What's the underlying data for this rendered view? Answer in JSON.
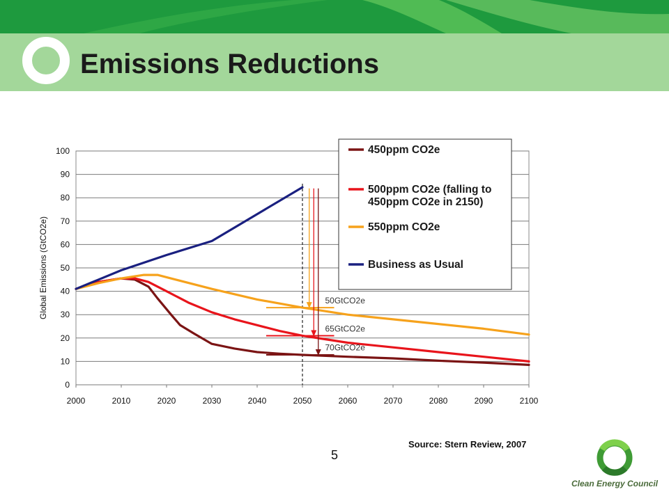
{
  "slide": {
    "title": "Emissions Reductions",
    "source": "Source: Stern Review, 2007",
    "page_number": "5",
    "logo_text": "Clean Energy Council"
  },
  "colors": {
    "header_dark": "#1e9a3e",
    "header_light": "#a3d79a",
    "series_450": "#7b1414",
    "series_500": "#e8141b",
    "series_550": "#f6a21c",
    "series_bau": "#1a2080"
  },
  "chart_data": {
    "type": "line",
    "title": "",
    "xlabel": "",
    "ylabel": "Global Emissions (GtCO2e)",
    "xlim": [
      2000,
      2100
    ],
    "ylim": [
      0,
      100
    ],
    "x_ticks": [
      2000,
      2010,
      2020,
      2030,
      2040,
      2050,
      2060,
      2070,
      2080,
      2090,
      2100
    ],
    "y_ticks": [
      0,
      10,
      20,
      30,
      40,
      50,
      60,
      70,
      80,
      90,
      100
    ],
    "grid": "horizontal",
    "legend_position": "top-right",
    "series": [
      {
        "name": "450ppm CO2e",
        "color": "#7b1414",
        "points": [
          [
            2000,
            41
          ],
          [
            2005,
            44
          ],
          [
            2010,
            45.5
          ],
          [
            2013,
            45
          ],
          [
            2016,
            42
          ],
          [
            2018,
            37
          ],
          [
            2021,
            30
          ],
          [
            2023,
            25.5
          ],
          [
            2026,
            22
          ],
          [
            2030,
            17.5
          ],
          [
            2035,
            15.5
          ],
          [
            2040,
            14
          ],
          [
            2045,
            13.3
          ],
          [
            2050,
            12.8
          ],
          [
            2060,
            12
          ],
          [
            2070,
            11.3
          ],
          [
            2080,
            10.3
          ],
          [
            2090,
            9.5
          ],
          [
            2100,
            8.5
          ]
        ]
      },
      {
        "name": "500ppm CO2e (falling to 450ppm CO2e in 2150)",
        "color": "#e8141b",
        "points": [
          [
            2000,
            41
          ],
          [
            2005,
            44
          ],
          [
            2010,
            45.5
          ],
          [
            2013,
            45.5
          ],
          [
            2016,
            44
          ],
          [
            2020,
            40
          ],
          [
            2025,
            35
          ],
          [
            2030,
            31
          ],
          [
            2035,
            28
          ],
          [
            2040,
            25.5
          ],
          [
            2045,
            23
          ],
          [
            2050,
            21
          ],
          [
            2055,
            19.5
          ],
          [
            2060,
            18
          ],
          [
            2070,
            16
          ],
          [
            2080,
            14
          ],
          [
            2090,
            12
          ],
          [
            2100,
            10
          ]
        ]
      },
      {
        "name": "550ppm CO2e",
        "color": "#f6a21c",
        "points": [
          [
            2000,
            41
          ],
          [
            2005,
            43.5
          ],
          [
            2010,
            45.5
          ],
          [
            2015,
            47
          ],
          [
            2018,
            47
          ],
          [
            2022,
            45
          ],
          [
            2030,
            41
          ],
          [
            2040,
            36.5
          ],
          [
            2050,
            33
          ],
          [
            2060,
            30
          ],
          [
            2070,
            28
          ],
          [
            2080,
            26
          ],
          [
            2090,
            24
          ],
          [
            2100,
            21.5
          ]
        ]
      },
      {
        "name": "Business as Usual",
        "color": "#1a2080",
        "points": [
          [
            2000,
            41
          ],
          [
            2005,
            45
          ],
          [
            2010,
            49
          ],
          [
            2020,
            55.5
          ],
          [
            2030,
            61.5
          ],
          [
            2040,
            73
          ],
          [
            2050,
            84.5
          ]
        ]
      }
    ],
    "annotations": [
      {
        "text": "50GtCO2e",
        "x": 2055,
        "y": 33,
        "target_y": 33,
        "color": "#f6a21c",
        "arrow_x": 2051.5
      },
      {
        "text": "65GtCO2e",
        "x": 2055,
        "y": 21,
        "target_y": 21,
        "color": "#e8141b",
        "arrow_x": 2052.5
      },
      {
        "text": "70GtCO2e",
        "x": 2055,
        "y": 13,
        "target_y": 12.8,
        "color": "#7b1414",
        "arrow_x": 2053.5
      }
    ],
    "reference_line": {
      "x": 2050,
      "style": "dashed"
    }
  }
}
